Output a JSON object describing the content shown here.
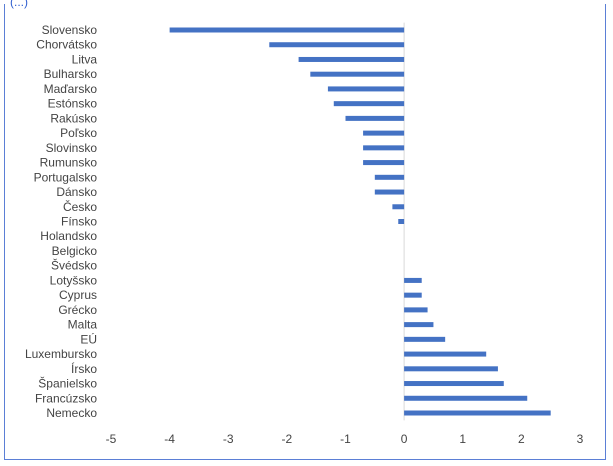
{
  "caption": "(...)",
  "chart_data": {
    "type": "bar",
    "orientation": "horizontal",
    "title": "",
    "xlabel": "",
    "ylabel": "",
    "xlim": [
      -5,
      3
    ],
    "x_ticks": [
      -5,
      -4,
      -3,
      -2,
      -1,
      0,
      1,
      2,
      3
    ],
    "x_tick_labels": [
      "-5",
      "-4",
      "-3",
      "-2",
      "-1",
      "0",
      "1",
      "2",
      "3"
    ],
    "grid": false,
    "legend": "none",
    "bar_color": "#4472c4",
    "categories": [
      "Slovensko",
      "Chorvátsko",
      "Litva",
      "Bulharsko",
      "Maďarsko",
      "Estónsko",
      "Rakúsko",
      "Poľsko",
      "Slovinsko",
      "Rumunsko",
      "Portugalsko",
      "Dánsko",
      "Česko",
      "Fínsko",
      "Holandsko",
      "Belgicko",
      "Švédsko",
      "Lotyšsko",
      "Cyprus",
      "Grécko",
      "Malta",
      "EÚ",
      "Luxembursko",
      "Írsko",
      "Španielsko",
      "Francúzsko",
      "Nemecko"
    ],
    "values": [
      -4.0,
      -2.3,
      -1.8,
      -1.6,
      -1.3,
      -1.2,
      -1.0,
      -0.7,
      -0.7,
      -0.7,
      -0.5,
      -0.5,
      -0.2,
      -0.1,
      0.0,
      0.0,
      0.0,
      0.3,
      0.3,
      0.4,
      0.5,
      0.7,
      1.4,
      1.6,
      1.7,
      2.1,
      2.5
    ]
  }
}
